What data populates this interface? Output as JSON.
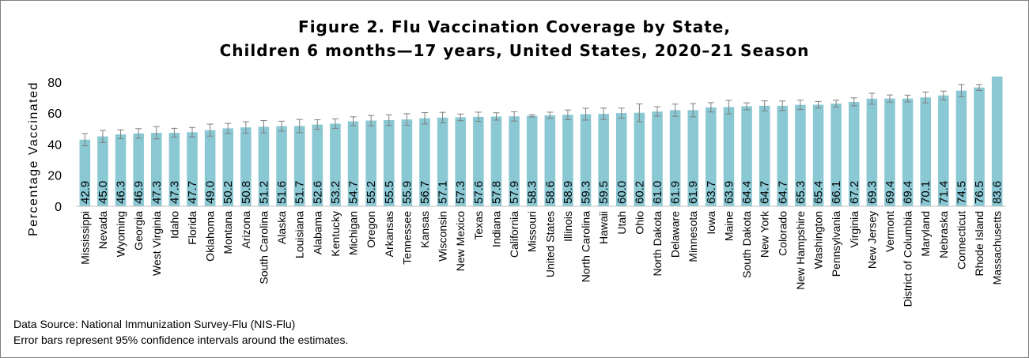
{
  "title_line1": "Figure 2. Flu Vaccination Coverage by State,",
  "title_line2": "Children 6 months—17 years, United States, 2020–21 Season",
  "footnotes": [
    "Data Source: National Immunization Survey-Flu (NIS-Flu)",
    "Error bars represent 95% confidence intervals around the estimates."
  ],
  "chart_data": {
    "type": "bar",
    "ylabel": "Percentage Vaccinated",
    "xlabel": "",
    "ylim": [
      0,
      85
    ],
    "yticks": [
      0,
      20,
      40,
      60,
      80
    ],
    "grid": false,
    "bar_color": "#8ac8d4",
    "errorbar_color": "#7f7f7f",
    "categories": [
      "Mississippi",
      "Nevada",
      "Wyoming",
      "Georgia",
      "West Virginia",
      "Idaho",
      "Florida",
      "Oklahoma",
      "Montana",
      "Arizona",
      "South Carolina",
      "Alaska",
      "Louisiana",
      "Alabama",
      "Kentucky",
      "Michigan",
      "Oregon",
      "Arkansas",
      "Tennessee",
      "Kansas",
      "Wisconsin",
      "New Mexico",
      "Texas",
      "Indiana",
      "California",
      "Missouri",
      "United States",
      "Illinois",
      "North Carolina",
      "Hawaii",
      "Utah",
      "Ohio",
      "North Dakota",
      "Delaware",
      "Minnesota",
      "Iowa",
      "Maine",
      "South Dakota",
      "New York",
      "Colorado",
      "New Hampshire",
      "Washington",
      "Pennsylvania",
      "Virginia",
      "New Jersey",
      "Vermont",
      "District of Columbia",
      "Maryland",
      "Nebraska",
      "Connecticut",
      "Rhode Island",
      "Massachusetts"
    ],
    "values": [
      42.9,
      45.0,
      46.3,
      46.9,
      47.3,
      47.3,
      47.7,
      49.0,
      50.2,
      50.8,
      51.2,
      51.6,
      51.7,
      52.6,
      53.2,
      54.7,
      55.2,
      55.5,
      55.9,
      56.7,
      57.1,
      57.3,
      57.6,
      57.8,
      57.9,
      58.3,
      58.6,
      58.9,
      59.3,
      59.5,
      60.0,
      60.2,
      61.0,
      61.9,
      61.9,
      63.7,
      63.9,
      64.4,
      64.7,
      64.7,
      65.3,
      65.4,
      66.1,
      67.2,
      69.3,
      69.4,
      69.4,
      70.1,
      71.4,
      74.5,
      76.5,
      83.6
    ],
    "value_labels": [
      "42.9",
      "45.0",
      "46.3",
      "46.9",
      "47.3",
      "47.3",
      "47.7",
      "49.0",
      "50.2",
      "50.8",
      "51.2",
      "51.6",
      "51.7",
      "52.6",
      "53.2",
      "54.7",
      "55.2",
      "55.5",
      "55.9",
      "56.7",
      "57.1",
      "57.3",
      "57.6",
      "57.8",
      "57.9",
      "58.3",
      "58.6",
      "58.9",
      "59.3",
      "59.5",
      "60.0",
      "60.2",
      "61.0",
      "61.9",
      "61.9",
      "63.7",
      "63.9",
      "64.4",
      "64.7",
      "64.7",
      "65.3",
      "65.4",
      "66.1",
      "67.2",
      "69.3",
      "69.4",
      "69.4",
      "70.1",
      "71.4",
      "74.5",
      "76.5",
      "83.6"
    ],
    "ci_lower": [
      38.9,
      41.0,
      43.5,
      43.8,
      43.4,
      44.5,
      44.7,
      45.2,
      47.0,
      47.1,
      47.3,
      48.4,
      47.4,
      49.5,
      50.2,
      51.9,
      51.8,
      52.1,
      52.2,
      53.0,
      53.7,
      55.1,
      54.6,
      55.5,
      54.9,
      57.5,
      56.6,
      55.8,
      55.5,
      55.9,
      56.8,
      54.5,
      58.0,
      57.9,
      57.6,
      60.7,
      59.5,
      62.2,
      61.5,
      61.6,
      62.3,
      63.3,
      63.9,
      64.7,
      65.7,
      67.1,
      67.2,
      66.6,
      68.6,
      70.6,
      74.6,
      83.6
    ],
    "ci_upper": [
      46.8,
      48.9,
      49.2,
      50.0,
      51.3,
      50.2,
      50.8,
      52.9,
      53.4,
      54.4,
      55.2,
      54.8,
      55.9,
      55.7,
      56.3,
      57.6,
      58.5,
      58.9,
      59.6,
      60.3,
      60.5,
      59.4,
      60.6,
      60.2,
      60.9,
      59.0,
      60.6,
      62.0,
      63.1,
      63.2,
      63.2,
      65.9,
      64.1,
      65.8,
      66.1,
      66.7,
      68.2,
      66.6,
      67.9,
      67.8,
      68.3,
      67.5,
      68.3,
      69.8,
      72.8,
      71.7,
      71.6,
      73.6,
      74.2,
      78.4,
      78.4,
      83.6
    ]
  }
}
